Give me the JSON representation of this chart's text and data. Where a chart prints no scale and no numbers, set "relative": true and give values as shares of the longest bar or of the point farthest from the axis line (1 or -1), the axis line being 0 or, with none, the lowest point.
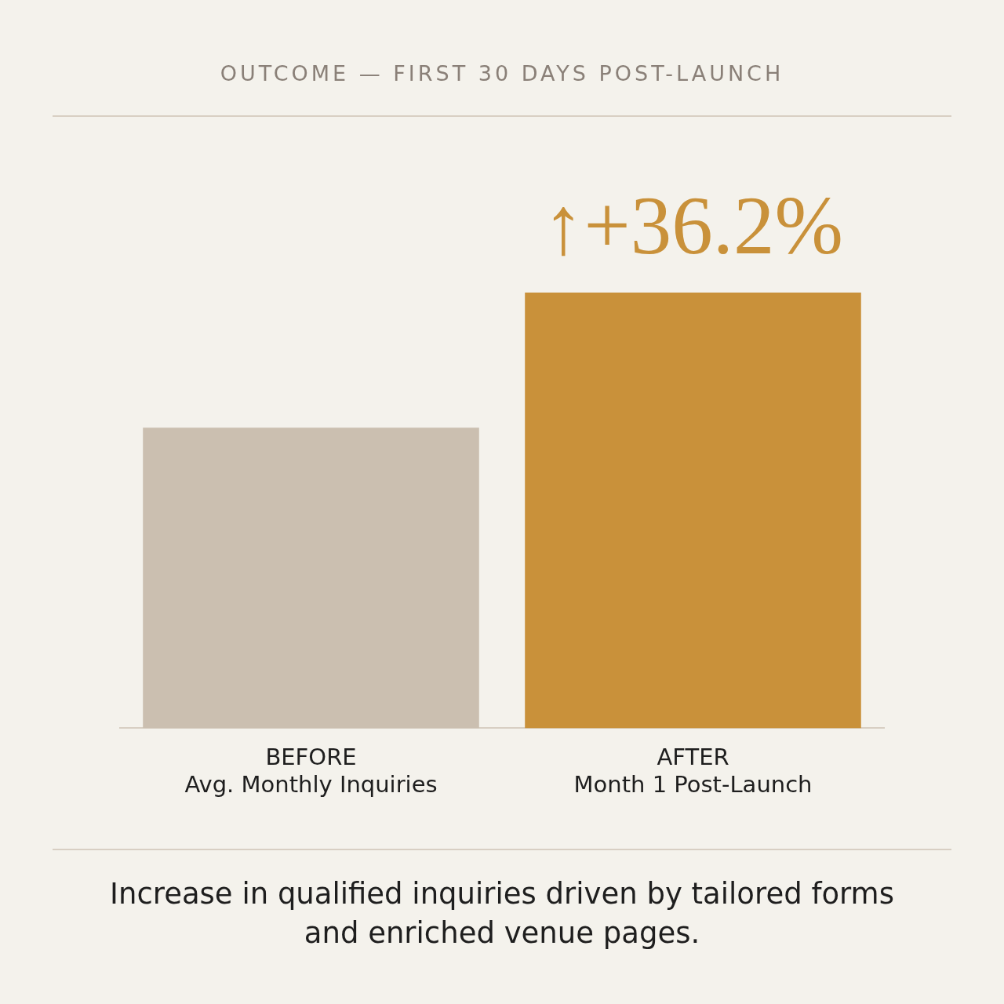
{
  "chart_data": {
    "type": "bar",
    "title": "OUTCOME — FIRST 30 DAYS POST-LAUNCH",
    "relative": true,
    "categories": [
      "BEFORE\nAvg. Monthly Inquiries",
      "AFTER\nMonth 1 Post-Launch"
    ],
    "values": [
      0.69,
      1
    ],
    "colors": [
      "#cbbfb0",
      "#c9913a"
    ],
    "annotations": [
      {
        "text": "↑+36.2%",
        "x": "AFTER\nMonth 1 Post-Launch",
        "y": 1
      },
      "Increase in qualified inquiries driven by tailored forms and enriched venue pages."
    ],
    "grid": false,
    "legend": false
  }
}
